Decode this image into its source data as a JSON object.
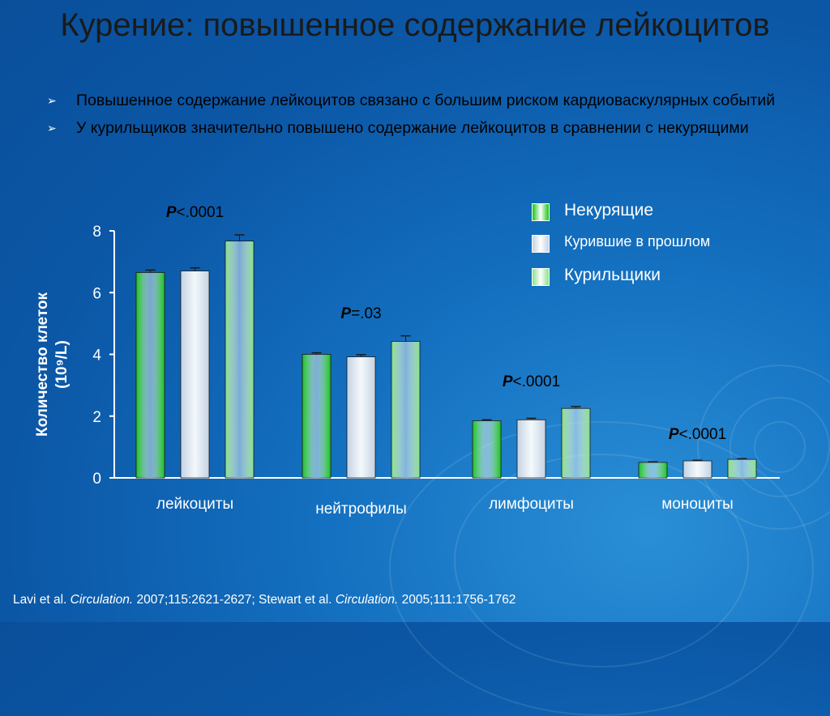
{
  "title": "Курение: повышенное содержание лейкоцитов",
  "bullets": [
    "Повышенное содержание лейкоцитов связано с большим риском кардиоваскулярных событий",
    " У курильщиков значительно повышено содержание лейкоцитов в сравнении с некурящими"
  ],
  "colors": {
    "series1": "#17c617",
    "series2": "#c4d2e2",
    "series3": "#8ce08a"
  },
  "legend": {
    "items": [
      {
        "label": "Некурящие",
        "color": "#17c617"
      },
      {
        "label": "Курившие в прошлом",
        "color": "#c4d2e2"
      },
      {
        "label": "Курильщики",
        "color": "#8ce08a"
      }
    ]
  },
  "chart_data": {
    "type": "bar",
    "ylabel_line1": "Количество клеток",
    "ylabel_line2": "(10⁹/L)",
    "ylim": [
      0,
      8
    ],
    "yticks": [
      "0",
      "2",
      "4",
      "6",
      "8"
    ],
    "categories": [
      "лейкоциты",
      "нейтрофилы",
      "лимфоциты",
      "моноциты"
    ],
    "series": [
      {
        "name": "Некурящие",
        "values": [
          6.65,
          4.0,
          1.85,
          0.5
        ],
        "errors": [
          0.08,
          0.05,
          0.03,
          0.02
        ]
      },
      {
        "name": "Курившие в прошлом",
        "values": [
          6.7,
          3.92,
          1.88,
          0.55
        ],
        "errors": [
          0.1,
          0.07,
          0.05,
          0.02
        ]
      },
      {
        "name": "Курильщики",
        "values": [
          7.67,
          4.42,
          2.25,
          0.6
        ],
        "errors": [
          0.2,
          0.18,
          0.06,
          0.02
        ]
      }
    ],
    "pvalues": [
      {
        "italic": "P",
        "rest": "<.0001"
      },
      {
        "italic": "P",
        "rest": "=.03"
      },
      {
        "italic": "P",
        "rest": "<.0001"
      },
      {
        "italic": "P",
        "rest": "<.0001"
      }
    ]
  },
  "footer": {
    "part1": "Lavi et al. ",
    "journal1": "Circulation.",
    "part2": " 2007;115:2621-2627; Stewart et al. ",
    "journal2": "Circulation.",
    "part3": " 2005;111:1756-1762"
  }
}
